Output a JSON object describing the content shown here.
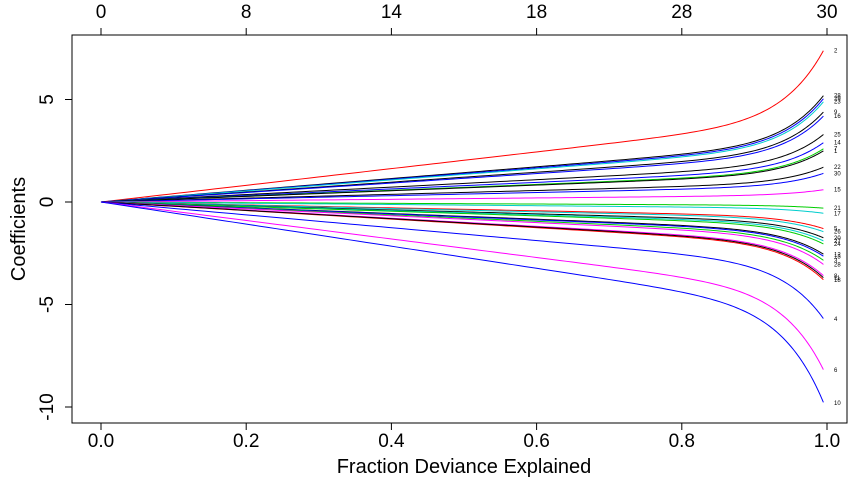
{
  "chart_data": {
    "type": "line",
    "title": "",
    "xlabel": "Fraction Deviance Explained",
    "ylabel": "Coefficients",
    "xlim": [
      0.0,
      1.0
    ],
    "ylim": [
      -10,
      7.5
    ],
    "grid": false,
    "legend": "none",
    "x_ticks": [
      "0.0",
      "0.2",
      "0.4",
      "0.6",
      "0.8",
      "1.0"
    ],
    "y_ticks": [
      "-10",
      "-5",
      "0",
      "5"
    ],
    "top_axis": {
      "ticks": [
        {
          "label": "0",
          "at_x": 0.0
        },
        {
          "label": "8",
          "at_x": 0.2
        },
        {
          "label": "14",
          "at_x": 0.4
        },
        {
          "label": "18",
          "at_x": 0.6
        },
        {
          "label": "28",
          "at_x": 0.8
        },
        {
          "label": "30",
          "at_x": 1.0
        }
      ]
    },
    "x_end": 0.995,
    "series": [
      {
        "end_label": "2",
        "final": 7.4,
        "color": "#ff0000"
      },
      {
        "end_label": "28",
        "final": 5.2,
        "color": "#000000"
      },
      {
        "end_label": "29",
        "final": 5.05,
        "color": "#0000ff"
      },
      {
        "end_label": "23",
        "final": 4.9,
        "color": "#00cdcd"
      },
      {
        "end_label": "9",
        "final": 4.4,
        "color": "#000000"
      },
      {
        "end_label": "16",
        "final": 4.2,
        "color": "#0000ff"
      },
      {
        "end_label": "25",
        "final": 3.3,
        "color": "#000000"
      },
      {
        "end_label": "14",
        "final": 2.9,
        "color": "#0000ff"
      },
      {
        "end_label": "7",
        "final": 2.6,
        "color": "#00cd00"
      },
      {
        "end_label": "1",
        "final": 2.5,
        "color": "#000000"
      },
      {
        "end_label": "22",
        "final": 1.7,
        "color": "#000000"
      },
      {
        "end_label": "30",
        "final": 1.4,
        "color": "#0000ff"
      },
      {
        "end_label": "15",
        "final": 0.6,
        "color": "#ff00ff"
      },
      {
        "end_label": "21",
        "final": -0.3,
        "color": "#00cd00"
      },
      {
        "end_label": "17",
        "final": -0.55,
        "color": "#00cdcd"
      },
      {
        "end_label": "5",
        "final": -1.3,
        "color": "#ff0000"
      },
      {
        "end_label": "26",
        "final": -1.45,
        "color": "#00cdcd"
      },
      {
        "end_label": "20",
        "final": -1.75,
        "color": "#000000"
      },
      {
        "end_label": "27",
        "final": -1.9,
        "color": "#00cdcd"
      },
      {
        "end_label": "24",
        "final": -2.05,
        "color": "#00cd00"
      },
      {
        "end_label": "12",
        "final": -2.55,
        "color": "#000000"
      },
      {
        "end_label": "13",
        "final": -2.65,
        "color": "#0000ff"
      },
      {
        "end_label": "3",
        "final": -2.85,
        "color": "#00cd00"
      },
      {
        "end_label": "28",
        "final": -3.05,
        "color": "#ff00ff"
      },
      {
        "end_label": "8",
        "final": -3.6,
        "color": "#ff00ff"
      },
      {
        "end_label": "18",
        "final": -3.8,
        "color": "#ff0000"
      },
      {
        "end_label": "11",
        "final": -3.7,
        "color": "#000000"
      },
      {
        "end_label": "4",
        "final": -5.7,
        "color": "#0000ff"
      },
      {
        "end_label": "6",
        "final": -8.2,
        "color": "#ff00ff"
      },
      {
        "end_label": "10",
        "final": -9.8,
        "color": "#0000ff"
      }
    ]
  }
}
